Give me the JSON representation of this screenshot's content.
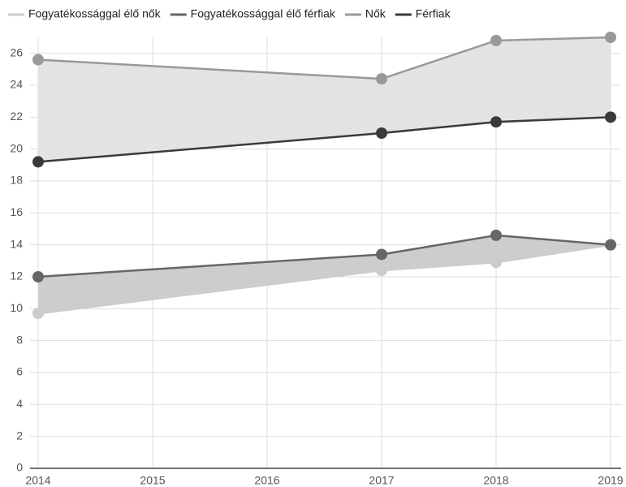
{
  "chart_data": {
    "type": "line",
    "x": [
      2014,
      2017,
      2018,
      2019
    ],
    "series": [
      {
        "name": "Fogyatékossággal élő nők",
        "color": "#cccccc",
        "values": [
          9.7,
          12.4,
          12.9,
          14.0
        ]
      },
      {
        "name": "Fogyatékossággal élő férfiak",
        "color": "#666666",
        "values": [
          12.0,
          13.4,
          14.6,
          14.0
        ]
      },
      {
        "name": "Nők",
        "color": "#999999",
        "values": [
          25.6,
          24.4,
          26.8,
          27.0
        ]
      },
      {
        "name": "Férfiak",
        "color": "#3a3a3a",
        "values": [
          19.2,
          21.0,
          21.7,
          22.0
        ]
      }
    ],
    "bands": [
      {
        "series": [
          0,
          1
        ],
        "color": "#cdcdcd"
      },
      {
        "series": [
          2,
          3
        ],
        "color": "#e3e3e5"
      }
    ],
    "xlim": [
      2014,
      2019
    ],
    "xticks": [
      2014,
      2015,
      2016,
      2017,
      2018,
      2019
    ],
    "ylim": [
      0,
      27
    ],
    "yticks": [
      0,
      2,
      4,
      6,
      8,
      10,
      12,
      14,
      16,
      18,
      20,
      22,
      24,
      26
    ],
    "grid": true,
    "legend": "top"
  }
}
